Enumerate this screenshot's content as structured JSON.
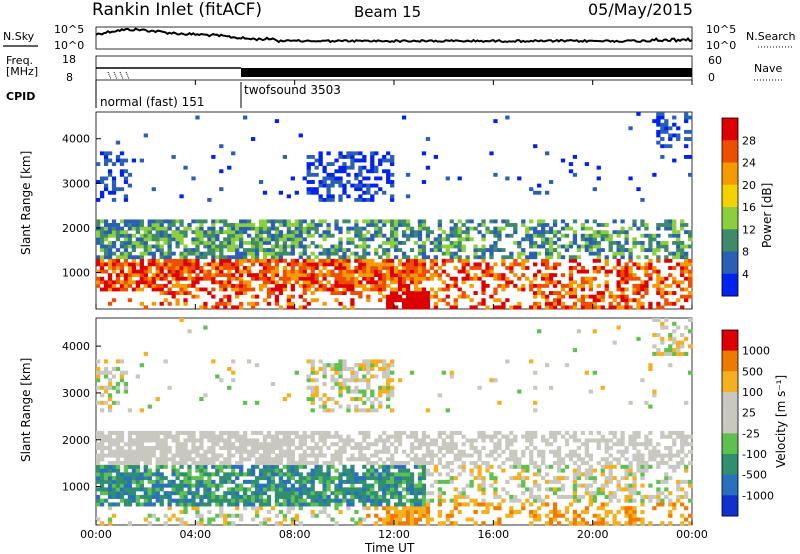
{
  "header": {
    "site": "Rankin Inlet (fitACF)",
    "beam": "Beam 15",
    "date": "05/May/2015"
  },
  "status": {
    "nsky_label": "N.Sky",
    "nsky_ticks": [
      "10^5",
      "10^0"
    ],
    "nsearch_label": "N.Search",
    "nsearch_ticks": [
      "10^5",
      "10^0"
    ],
    "freq_label_1": "Freq.",
    "freq_label_2": "[MHz]",
    "freq_ticks": [
      "18",
      "8"
    ],
    "nave_label": "Nave",
    "nave_ticks": [
      "60",
      "0"
    ],
    "cpid_label": "CPID",
    "cpid_modes": [
      "normal (fast) 151",
      "twofsound 3503"
    ]
  },
  "chart_data": [
    {
      "type": "heatmap",
      "name": "power",
      "ylabel": "Slant Range [km]",
      "xlabel": "Time UT",
      "x_ticks": [
        "00:00",
        "04:00",
        "08:00",
        "12:00",
        "16:00",
        "20:00",
        "00:00"
      ],
      "y_ticks": [
        1000,
        2000,
        3000,
        4000
      ],
      "ylim": [
        180,
        4600
      ],
      "colorbar_label": "Power [dB]",
      "colorbar_ticks": [
        "4",
        "8",
        "12",
        "16",
        "20",
        "24",
        "28"
      ],
      "colorbar_colors": [
        "#0022ee",
        "#2a5fb5",
        "#3e8a6a",
        "#8ccf3c",
        "#f2d300",
        "#f59a00",
        "#ee4e00",
        "#dd0000"
      ]
    },
    {
      "type": "heatmap",
      "name": "velocity",
      "ylabel": "Slant Range [km]",
      "xlabel": "Time UT",
      "x_ticks": [
        "00:00",
        "04:00",
        "08:00",
        "12:00",
        "16:00",
        "20:00",
        "00:00"
      ],
      "y_ticks": [
        1000,
        2000,
        3000,
        4000
      ],
      "ylim": [
        180,
        4600
      ],
      "colorbar_label": "Velocity [m s⁻¹]",
      "colorbar_ticks": [
        "1000",
        "500",
        "100",
        "25",
        "-25",
        "-100",
        "-500",
        "-1000"
      ],
      "colorbar_colors": [
        "#1030d0",
        "#2a6fc0",
        "#2f8f6f",
        "#5fc050",
        "#c8c8c0",
        "#c8c8c0",
        "#f5b020",
        "#f07a00",
        "#dd0000"
      ]
    }
  ]
}
